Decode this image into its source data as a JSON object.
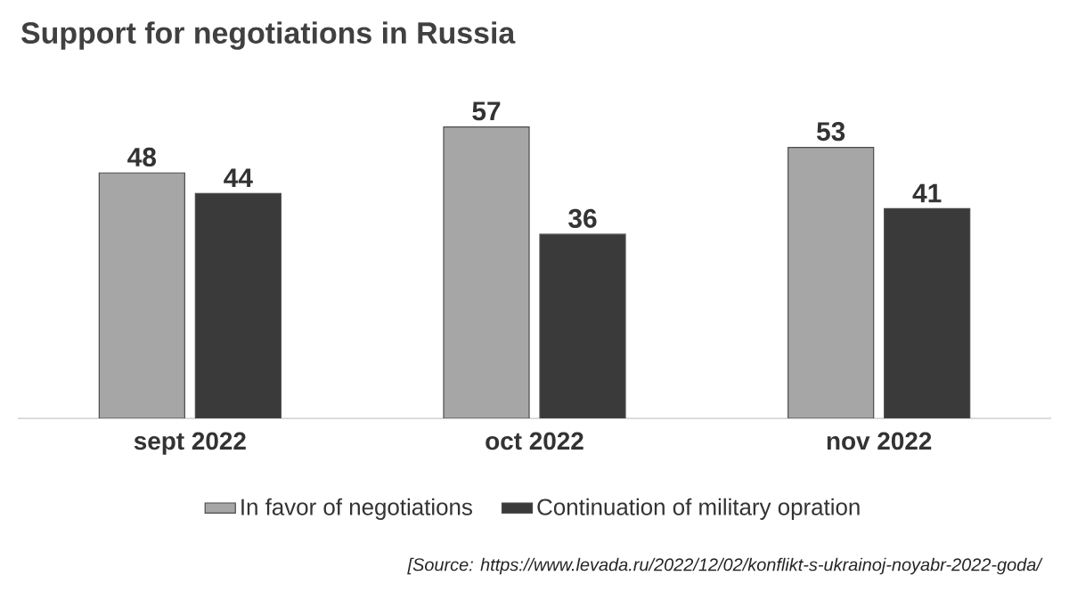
{
  "chart_data": {
    "type": "bar",
    "title": "Support for negotiations in Russia",
    "categories": [
      "sept 2022",
      "oct 2022",
      "nov 2022"
    ],
    "series": [
      {
        "name": "In favor of negotiations",
        "color": "#a6a6a6",
        "values": [
          48,
          57,
          53
        ]
      },
      {
        "name": "Continuation of military opration",
        "color": "#3a3a3a",
        "values": [
          44,
          36,
          41
        ]
      }
    ],
    "data_labels": true,
    "legend": "bottom",
    "annotations": [
      "[Source: https://www.levada.ru/2022/12/02/konflikt-s-ukrainoj-noyabr-2022-goda/"
    ]
  }
}
